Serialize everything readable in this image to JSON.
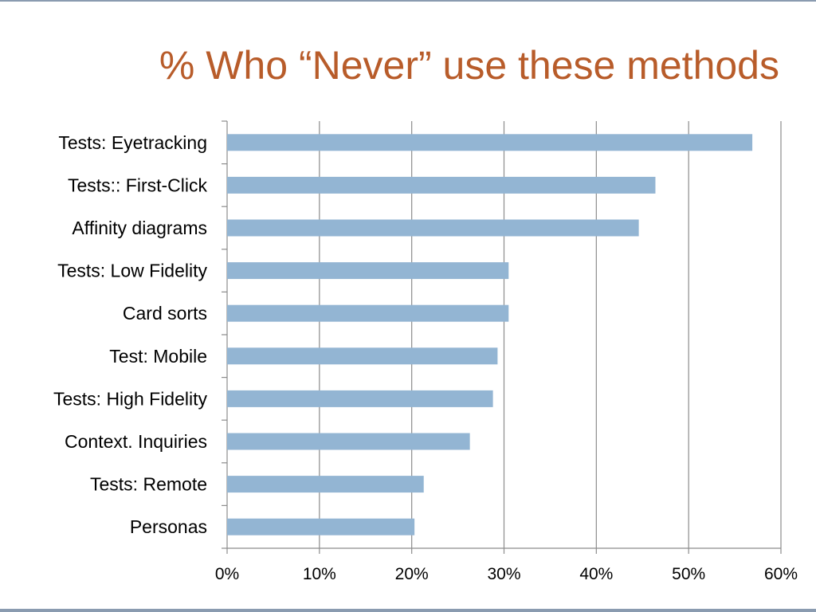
{
  "slide": {
    "title": "% Who “Never” use these methods"
  },
  "colors": {
    "title": "#b85c2a",
    "bar": "#93b5d3",
    "gridline": "#8c8c8c",
    "axis": "#8c8c8c",
    "frame": "#8a9bb0"
  },
  "chart_data": {
    "type": "bar",
    "orientation": "horizontal",
    "title": "",
    "xlabel": "",
    "ylabel": "",
    "categories": [
      "Tests: Eyetracking",
      "Tests:: First-Click",
      "Affinity diagrams",
      "Tests: Low Fidelity",
      "Card sorts",
      "Test: Mobile",
      "Tests: High Fidelity",
      "Context. Inquiries",
      "Tests: Remote",
      "Personas"
    ],
    "values": [
      0.569,
      0.464,
      0.446,
      0.305,
      0.305,
      0.293,
      0.288,
      0.263,
      0.213,
      0.203
    ],
    "xlim": [
      0,
      0.6
    ],
    "xticks": [
      "0%",
      "10%",
      "20%",
      "30%",
      "40%",
      "50%",
      "60%"
    ],
    "grid": "vertical",
    "legend": "none"
  }
}
